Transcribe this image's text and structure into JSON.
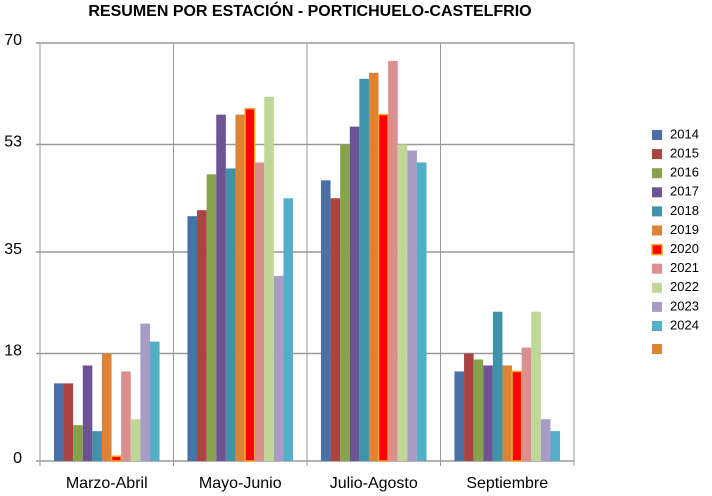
{
  "chart_data": {
    "type": "bar",
    "title": "RESUMEN POR ESTACIÓN - PORTICHUELO-CASTELFRIO",
    "categories": [
      "Marzo-Abril",
      "Mayo-Junio",
      "Julio-Agosto",
      "Septiembre"
    ],
    "ylim": [
      0,
      70
    ],
    "yticks": [
      0,
      18,
      35,
      53,
      70
    ],
    "grid": true,
    "legend": "right",
    "series": [
      {
        "name": "2014",
        "color": "#4a70a8",
        "values": [
          13,
          41,
          47,
          15
        ]
      },
      {
        "name": "2015",
        "color": "#a84442",
        "values": [
          13,
          42,
          44,
          18
        ]
      },
      {
        "name": "2016",
        "color": "#86a24a",
        "values": [
          6,
          48,
          53,
          17
        ]
      },
      {
        "name": "2017",
        "color": "#6d5393",
        "values": [
          16,
          58,
          56,
          16
        ]
      },
      {
        "name": "2018",
        "color": "#3f93a8",
        "values": [
          5,
          49,
          64,
          25
        ]
      },
      {
        "name": "2019",
        "color": "#dd8335",
        "values": [
          18,
          58,
          65,
          16
        ]
      },
      {
        "name": "2020",
        "color": "#ff0000",
        "border": "#f5a623",
        "values": [
          0.8,
          59,
          58,
          15
        ]
      },
      {
        "name": "2021",
        "color": "#d9908f",
        "values": [
          15,
          50,
          67,
          19
        ]
      },
      {
        "name": "2022",
        "color": "#bfd797",
        "values": [
          7,
          61,
          53,
          25
        ]
      },
      {
        "name": "2023",
        "color": "#a89cc6",
        "values": [
          23,
          31,
          52,
          7
        ]
      },
      {
        "name": "2024",
        "color": "#53aec8",
        "values": [
          20,
          44,
          50,
          5
        ]
      }
    ]
  }
}
